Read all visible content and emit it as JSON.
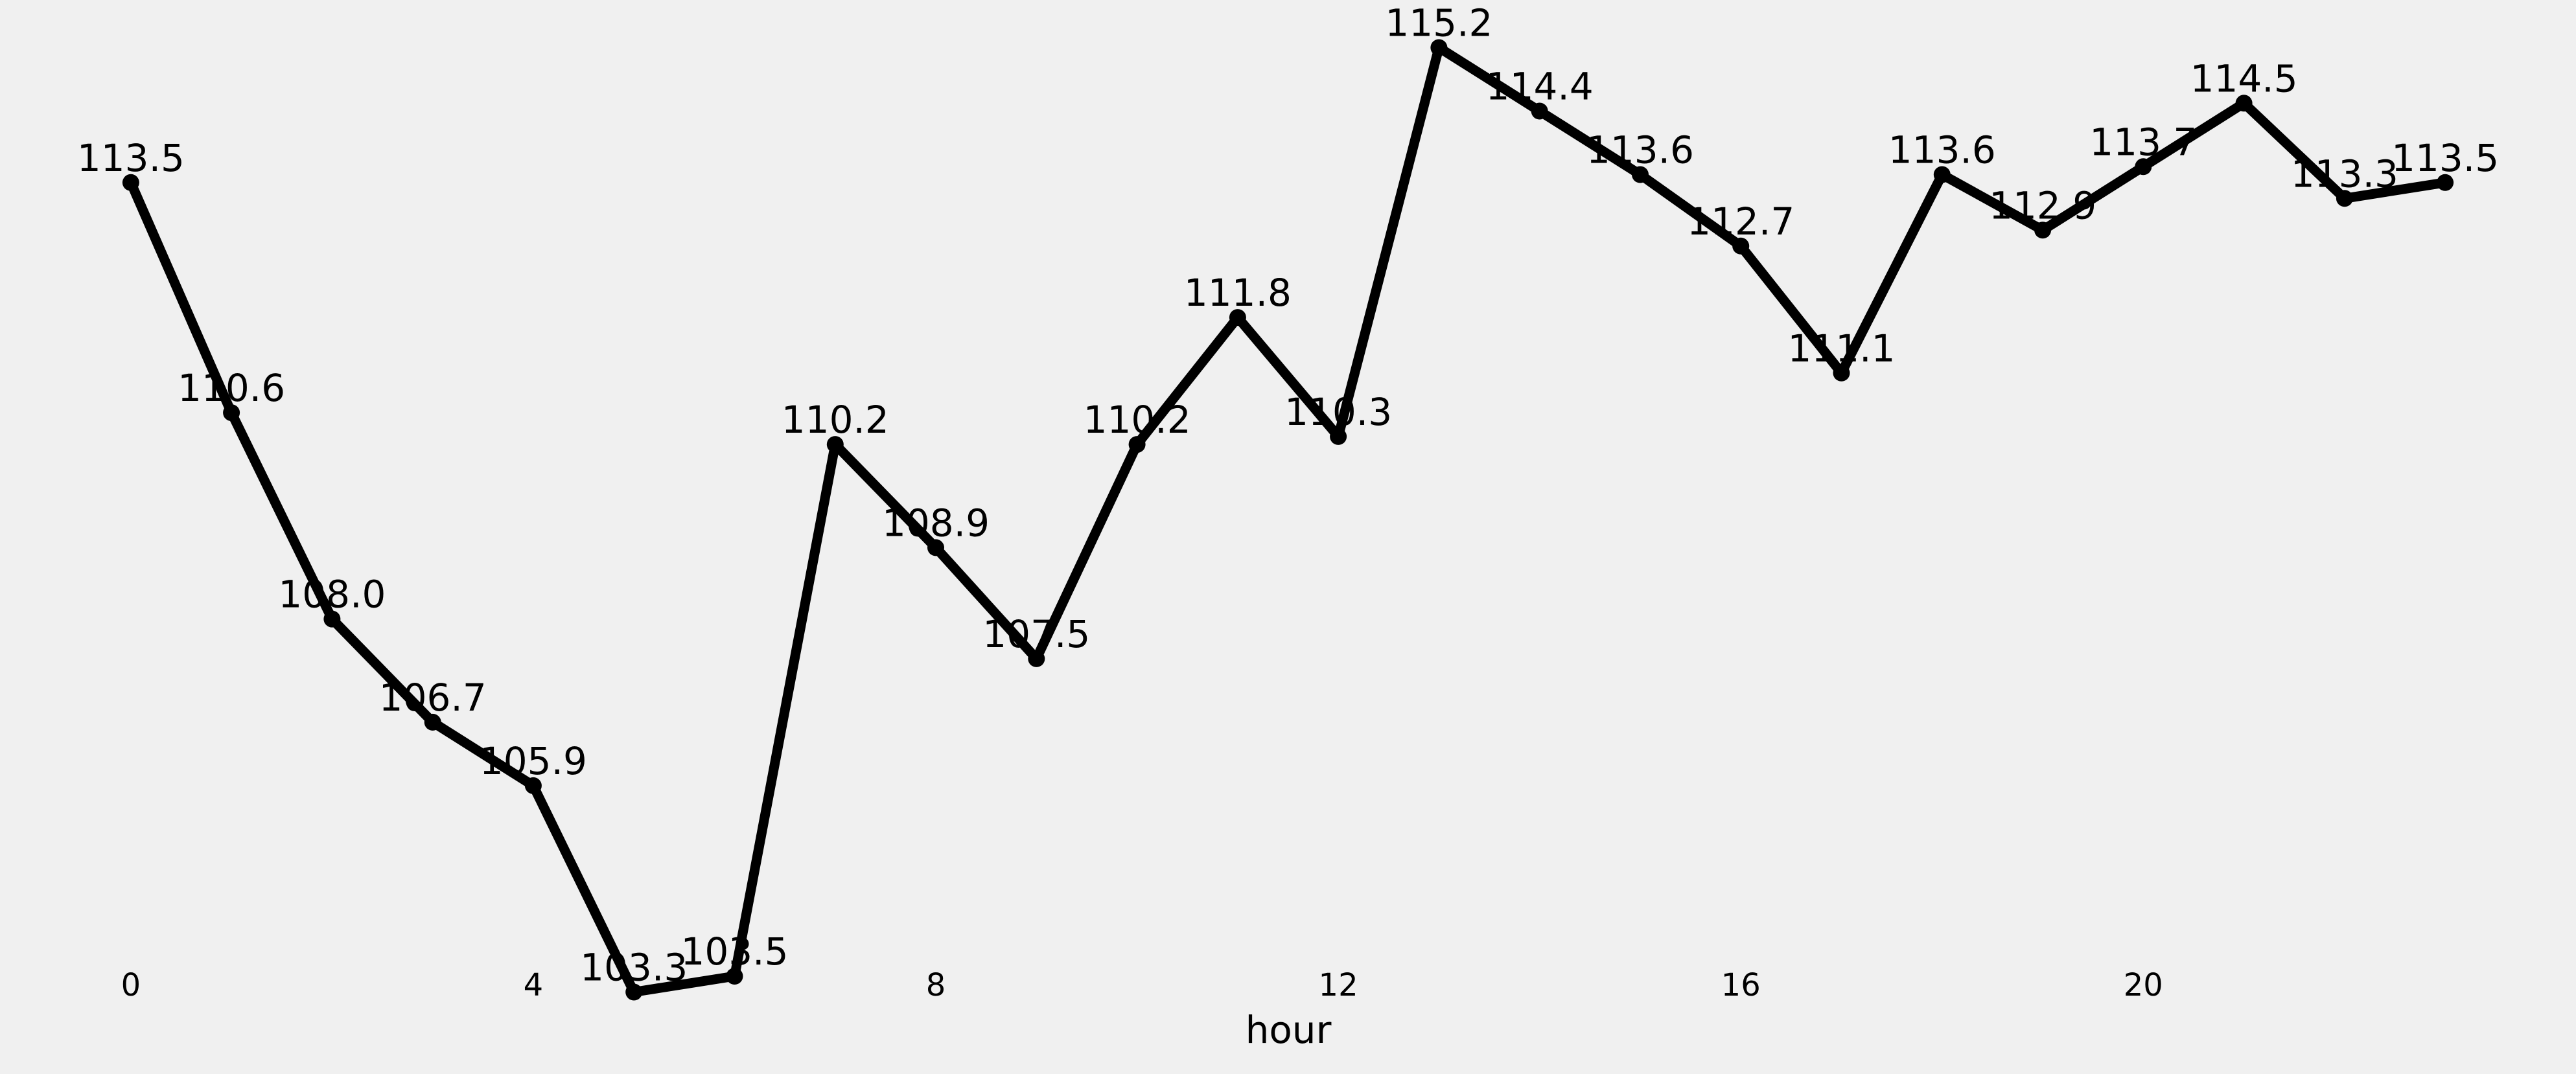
{
  "chart_data": {
    "type": "line",
    "xlabel": "hour",
    "ylabel": "",
    "title": "",
    "x": [
      0,
      1,
      2,
      3,
      4,
      5,
      6,
      7,
      8,
      9,
      10,
      11,
      12,
      13,
      14,
      15,
      16,
      17,
      18,
      19,
      20,
      21,
      22,
      23
    ],
    "series": [
      {
        "values": [
          113.5,
          110.6,
          108.0,
          106.7,
          105.9,
          103.3,
          103.5,
          110.2,
          108.9,
          107.5,
          110.2,
          111.8,
          110.3,
          115.2,
          114.4,
          113.6,
          112.7,
          111.1,
          113.6,
          112.9,
          113.7,
          114.5,
          113.3,
          113.5
        ],
        "labels": [
          "113.5",
          "110.6",
          "108.0",
          "106.7",
          "105.9",
          "103.3",
          "103.5",
          "110.2",
          "108.9",
          "107.5",
          "110.2",
          "111.8",
          "110.3",
          "115.2",
          "114.4",
          "113.6",
          "112.7",
          "111.1",
          "113.6",
          "112.9",
          "113.7",
          "114.5",
          "113.3",
          "113.5"
        ],
        "color": "#000000"
      }
    ],
    "xticks": [
      0,
      4,
      8,
      12,
      16,
      20
    ],
    "xtick_labels": [
      "0",
      "4",
      "8",
      "12",
      "16",
      "20"
    ],
    "xlim": [
      -1.3,
      24.3
    ],
    "ylim": [
      102.3,
      115.8
    ],
    "grid": false,
    "background": "#f0f0f0"
  }
}
